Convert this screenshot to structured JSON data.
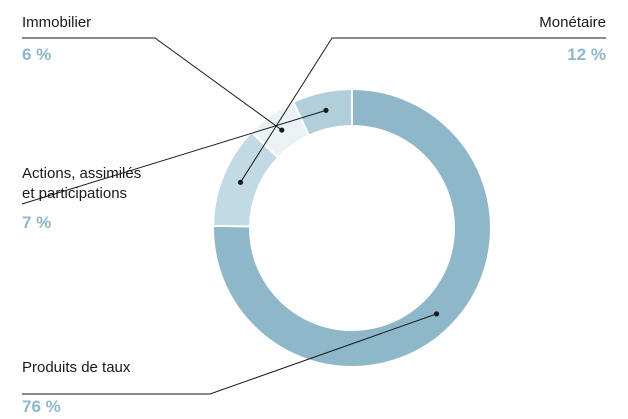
{
  "chart_data": {
    "type": "pie",
    "variant": "donut",
    "categories": [
      "Produits de taux",
      "Monétaire",
      "Immobilier",
      "Actions, assimilés et participations"
    ],
    "values": [
      76,
      12,
      6,
      7
    ],
    "value_labels": [
      "76 %",
      "12 %",
      "6 %",
      "7 %"
    ],
    "label_lines": [
      [
        "Produits de taux"
      ],
      [
        "Monétaire"
      ],
      [
        "Immobilier"
      ],
      [
        "Actions, assimilés",
        "et participations"
      ]
    ],
    "title": "",
    "colors": [
      "#8eb8c9",
      "#c2dae4",
      "#eaf2f6",
      "#b0cfdb"
    ],
    "percent_color": "#8eb8c9",
    "line_color": "#1a1a1a"
  }
}
